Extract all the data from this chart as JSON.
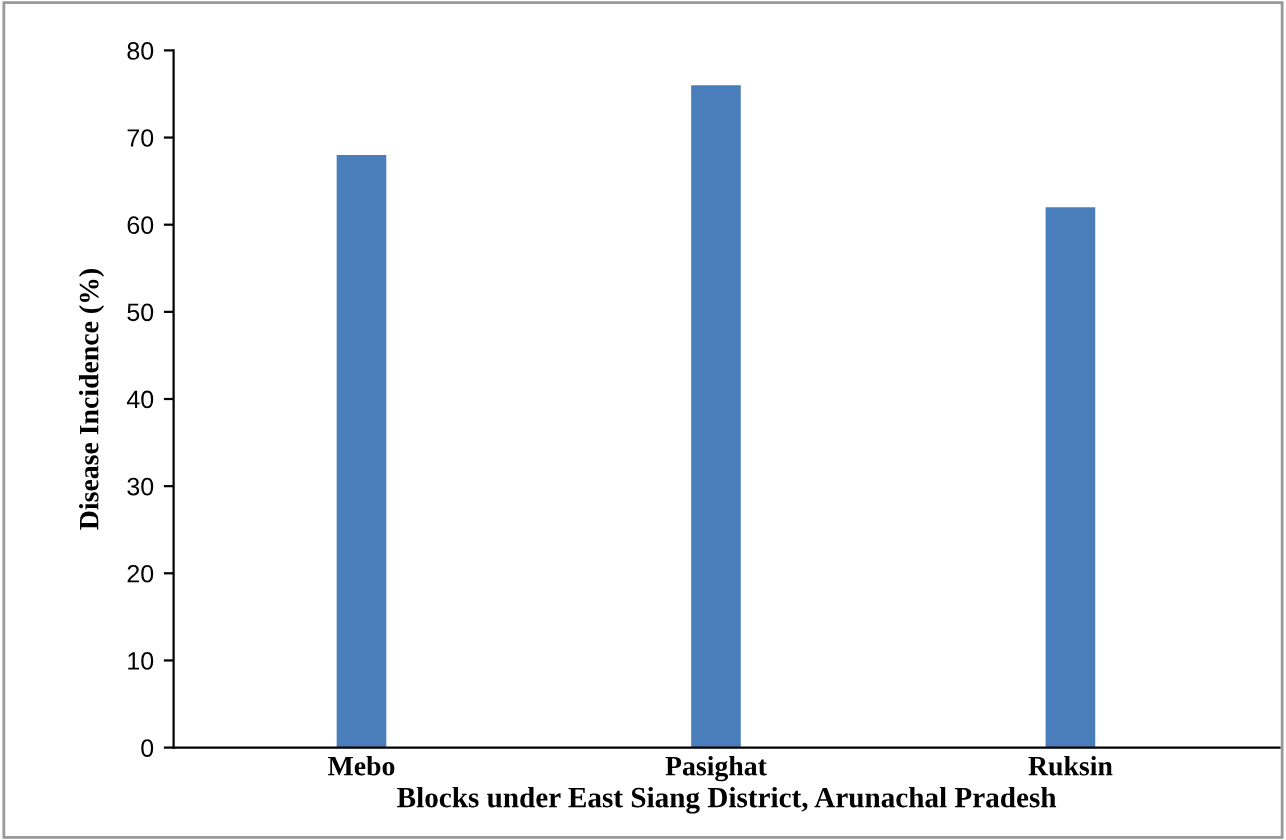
{
  "chart_data": {
    "type": "bar",
    "xlabel": "Blocks under East Siang District, Arunachal Pradesh",
    "ylabel": "Disease Incidence (%)",
    "categories": [
      "Mebo",
      "Pasighat",
      "Ruksin"
    ],
    "values": [
      68,
      76,
      62
    ],
    "color": "#4a7ebb",
    "ylim": [
      0,
      80
    ],
    "yticks": [
      0,
      10,
      20,
      30,
      40,
      50,
      60,
      70,
      80
    ],
    "grid": false,
    "legend": false
  }
}
